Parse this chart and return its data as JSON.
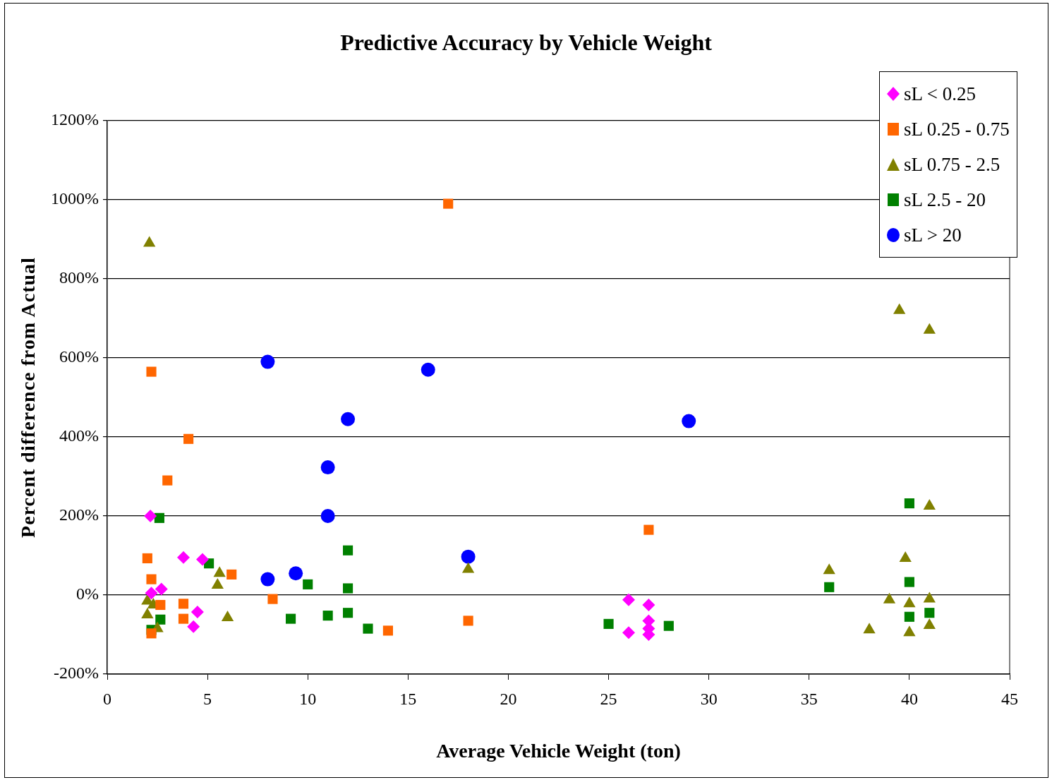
{
  "chart_data": {
    "type": "scatter",
    "title": "Predictive Accuracy by Vehicle Weight",
    "xlabel": "Average Vehicle Weight (ton)",
    "ylabel": "Percent difference from Actual",
    "xlim": [
      0,
      45
    ],
    "xticks": [
      0,
      5,
      10,
      15,
      20,
      25,
      30,
      35,
      40,
      45
    ],
    "ylim": [
      -200,
      1200
    ],
    "yticks": [
      {
        "value": -200,
        "label": "-200%"
      },
      {
        "value": 0,
        "label": "0%"
      },
      {
        "value": 200,
        "label": "200%"
      },
      {
        "value": 400,
        "label": "400%"
      },
      {
        "value": 600,
        "label": "600%"
      },
      {
        "value": 800,
        "label": "800%"
      },
      {
        "value": 1000,
        "label": "1000%"
      },
      {
        "value": 1200,
        "label": "1200%"
      }
    ],
    "grid": "y",
    "legend": "top right",
    "series": [
      {
        "name": "sL < 0.25",
        "color": "#ff00ff",
        "marker": "diamond",
        "x": [
          2.15,
          2.2,
          2.7,
          3.8,
          4.75,
          4.5,
          4.3,
          26,
          26,
          27,
          27,
          27,
          27
        ],
        "values": [
          200,
          5,
          15,
          95,
          90,
          -43,
          -80,
          -12,
          -95,
          -25,
          -65,
          -85,
          -100
        ]
      },
      {
        "name": "sL 0.25 - 0.75",
        "color": "#ff6600",
        "marker": "square",
        "x": [
          17,
          2.2,
          4.05,
          3.0,
          2.0,
          2.2,
          2.65,
          3.8,
          3.8,
          6.2,
          8.25,
          2.2,
          14,
          18,
          27
        ],
        "values": [
          990,
          565,
          395,
          290,
          93,
          40,
          -25,
          -22,
          -60,
          52,
          -10,
          -97,
          -90,
          -65,
          165
        ]
      },
      {
        "name": "sL 0.75 - 2.5",
        "color": "#808000",
        "marker": "triangle",
        "x": [
          2.1,
          39.5,
          41,
          41,
          39.8,
          36,
          18,
          5.6,
          5.5,
          6,
          2.0,
          2.3,
          2.0,
          2.5,
          39,
          38,
          40,
          40,
          41,
          41
        ],
        "values": [
          890,
          720,
          670,
          225,
          93,
          62,
          65,
          55,
          25,
          -57,
          -15,
          -25,
          -50,
          -85,
          -12,
          -88,
          -22,
          -95,
          -10,
          -77
        ]
      },
      {
        "name": "sL 2.5 - 20",
        "color": "#008000",
        "marker": "square",
        "x": [
          2.6,
          5.07,
          2.65,
          2.2,
          9.15,
          10,
          11,
          12,
          12,
          12,
          13,
          25,
          28,
          36,
          40,
          40,
          40,
          41
        ],
        "values": [
          195,
          80,
          -62,
          -88,
          -60,
          27,
          -52,
          113,
          17,
          -45,
          -85,
          -73,
          -78,
          20,
          232,
          33,
          -55,
          -45
        ]
      },
      {
        "name": "sL > 20",
        "color": "#0000ff",
        "marker": "circle",
        "x": [
          8,
          16,
          12,
          29,
          11,
          11,
          8,
          9.4,
          18
        ],
        "values": [
          590,
          570,
          445,
          440,
          323,
          200,
          40,
          55,
          97
        ]
      }
    ]
  }
}
